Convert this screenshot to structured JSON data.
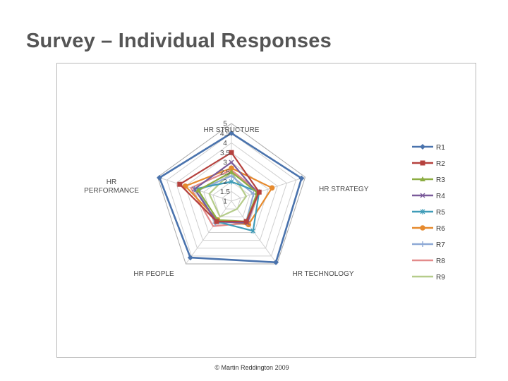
{
  "slide": {
    "title": "Survey – Individual Responses",
    "footer": "© Martin Reddington 2009"
  },
  "chart_data": {
    "type": "radar",
    "axes": [
      "HR STRUCTURE",
      "HR STRATEGY",
      "HR TECHNOLOGY",
      "HR PEOPLE",
      "HR PERFORMANCE"
    ],
    "axis_label_lines": [
      [
        "HR STRUCTURE"
      ],
      [
        "HR STRATEGY"
      ],
      [
        "HR TECHNOLOGY"
      ],
      [
        "HR PEOPLE"
      ],
      [
        "HR",
        "PERFORMANCE"
      ]
    ],
    "rlim": [
      1,
      5
    ],
    "tick_labels": [
      "1",
      "1.5",
      "2",
      "2.5",
      "3",
      "3.5",
      "4",
      "4.5",
      "5"
    ],
    "grid": true,
    "legend_position": "right",
    "series": [
      {
        "name": "R1",
        "color": "#4a73ad",
        "marker": "diamond",
        "values": [
          4.5,
          4.8,
          4.9,
          4.6,
          4.9
        ]
      },
      {
        "name": "R2",
        "color": "#b5413d",
        "marker": "square",
        "values": [
          3.5,
          2.5,
          2.3,
          2.3,
          3.8
        ]
      },
      {
        "name": "R3",
        "color": "#8cad42",
        "marker": "triangle",
        "values": [
          2.5,
          2.4,
          2.3,
          2.2,
          2.8
        ]
      },
      {
        "name": "R4",
        "color": "#7a5a9a",
        "marker": "x",
        "values": [
          3.0,
          2.4,
          2.4,
          2.3,
          3.0
        ]
      },
      {
        "name": "R5",
        "color": "#3f9cb8",
        "marker": "star",
        "values": [
          2.0,
          2.5,
          2.9,
          2.3,
          3.0
        ]
      },
      {
        "name": "R6",
        "color": "#e68a2e",
        "marker": "circle",
        "values": [
          2.7,
          3.2,
          2.5,
          2.2,
          3.5
        ]
      },
      {
        "name": "R7",
        "color": "#8ea9d6",
        "marker": "plus",
        "values": [
          2.3,
          2.2,
          2.3,
          2.4,
          2.8
        ]
      },
      {
        "name": "R8",
        "color": "#e38b8b",
        "marker": "none",
        "values": [
          2.6,
          2.5,
          2.4,
          2.6,
          3.2
        ]
      },
      {
        "name": "R9",
        "color": "#b5cc8a",
        "marker": "none",
        "values": [
          2.5,
          1.8,
          1.5,
          2.0,
          2.2
        ]
      }
    ]
  }
}
